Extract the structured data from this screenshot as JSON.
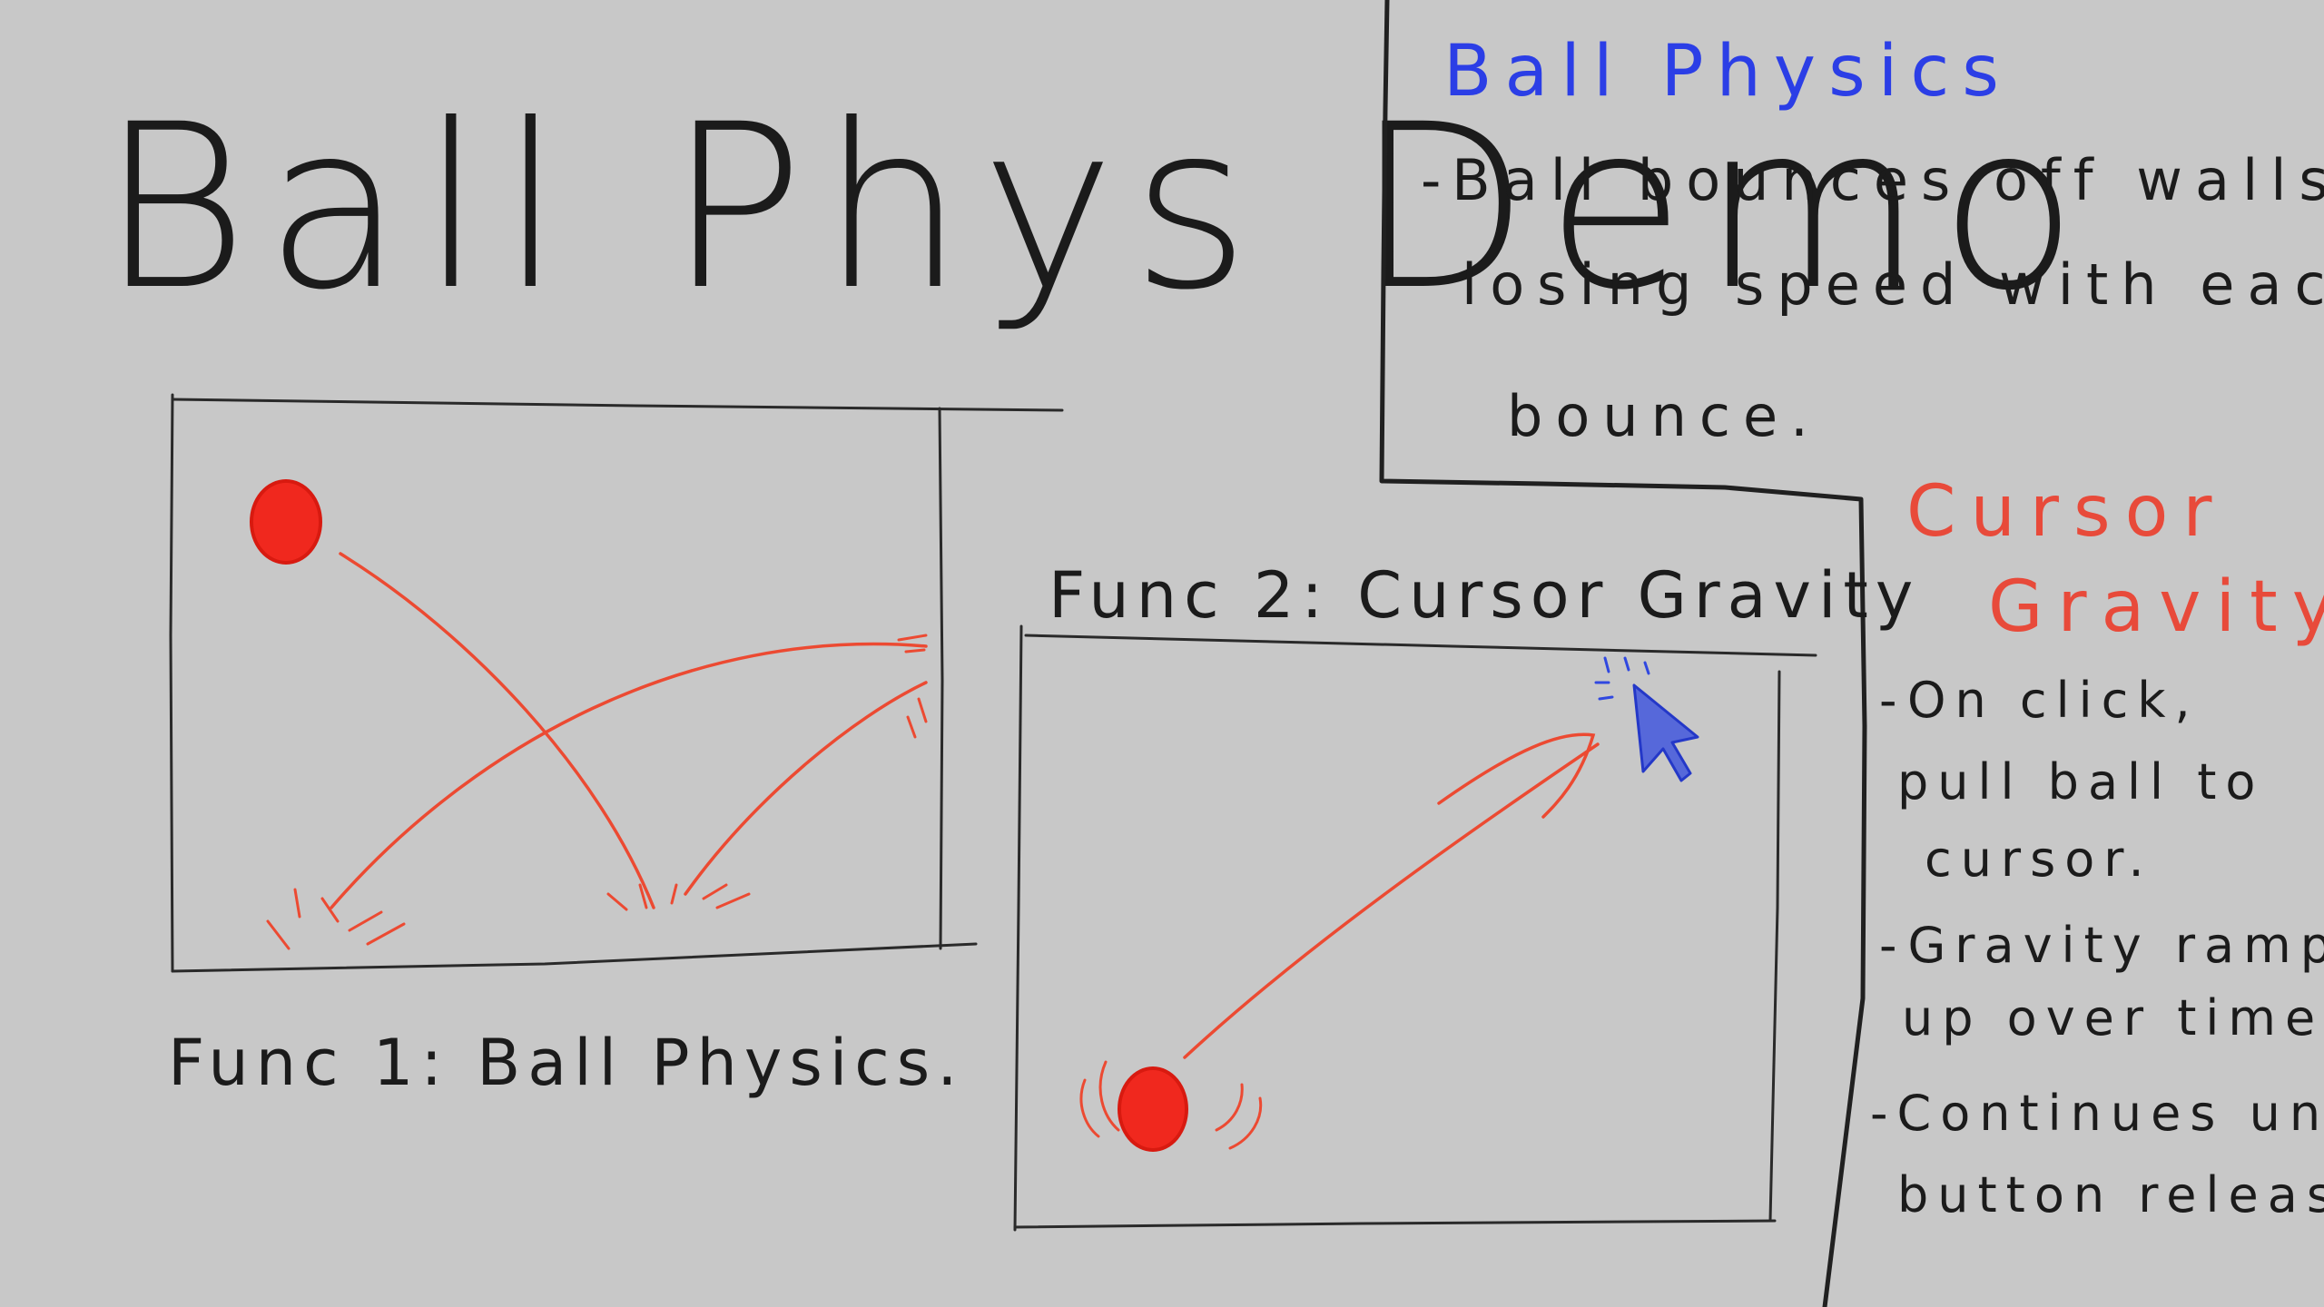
{
  "title": "Ball Phys Demo",
  "panels": {
    "func1_caption": "Func 1: Ball Physics.",
    "func2_caption": "Func 2: Cursor Gravity"
  },
  "notes": {
    "ball_physics": {
      "heading": "Ball Physics",
      "lines": [
        "-Ball bounces off walls,",
        "losing speed with each",
        "bounce."
      ]
    },
    "cursor_gravity": {
      "heading_lines": [
        "Cursor",
        "Gravity"
      ],
      "lines": [
        "-On click,",
        "pull ball to",
        "cursor.",
        "-Gravity ramps",
        "up over time.",
        "-Continues until",
        "button released."
      ]
    }
  },
  "colors": {
    "background": "#c8c8c8",
    "ink": "#1b1b1b",
    "ball": "#f0281e",
    "trajectory": "#ec4a32",
    "heading_blue": "#2b3ee6",
    "heading_red": "#e84a3a",
    "cursor": "#3048e0"
  },
  "icons": {
    "ball": "red-ball-icon",
    "cursor": "mouse-cursor-icon"
  }
}
